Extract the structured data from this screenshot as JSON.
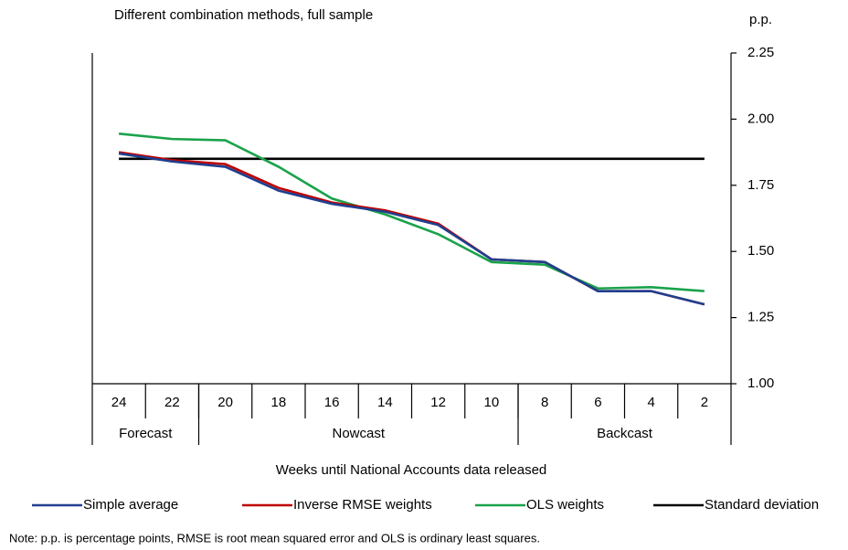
{
  "chart_data": {
    "type": "line",
    "title": "Different combination methods, full sample",
    "y_unit": "p.p.",
    "x_label": "Weeks until National Accounts data released",
    "note": "Note: p.p. is percentage points, RMSE is root mean squared error and OLS is ordinary least squares.",
    "categories": [
      "24",
      "22",
      "20",
      "18",
      "16",
      "14",
      "12",
      "10",
      "8",
      "6",
      "4",
      "2"
    ],
    "category_groups": [
      {
        "name": "Forecast",
        "span": 2
      },
      {
        "name": "Nowcast",
        "span": 6
      },
      {
        "name": "Backcast",
        "span": 4
      }
    ],
    "series": [
      {
        "name": "Simple average",
        "color": "#1f3f8f",
        "values": [
          1.87,
          1.84,
          1.82,
          1.73,
          1.68,
          1.65,
          1.6,
          1.47,
          1.46,
          1.35,
          1.35,
          1.3
        ]
      },
      {
        "name": "Inverse RMSE weights",
        "color": "#c00000",
        "values": [
          1.875,
          1.845,
          1.83,
          1.74,
          1.685,
          1.655,
          1.605,
          1.47,
          1.46,
          1.35,
          1.35,
          1.3
        ]
      },
      {
        "name": "OLS weights",
        "color": "#1aa24a",
        "values": [
          1.945,
          1.925,
          1.92,
          1.82,
          1.7,
          1.64,
          1.565,
          1.46,
          1.45,
          1.36,
          1.365,
          1.35
        ]
      },
      {
        "name": "Standard deviation",
        "color": "#000000",
        "values": [
          1.85,
          1.85,
          1.85,
          1.85,
          1.85,
          1.85,
          1.85,
          1.85,
          1.85,
          1.85,
          1.85,
          1.85
        ]
      }
    ],
    "ylim": [
      1.0,
      2.25
    ],
    "yticks": [
      {
        "value": 1.0,
        "label": "1.00"
      },
      {
        "value": 1.25,
        "label": "1.25"
      },
      {
        "value": 1.5,
        "label": "1.50"
      },
      {
        "value": 1.75,
        "label": "1.75"
      },
      {
        "value": 2.0,
        "label": "2.00"
      },
      {
        "value": 2.25,
        "label": "2.25"
      }
    ],
    "y_axis_side": "right"
  }
}
